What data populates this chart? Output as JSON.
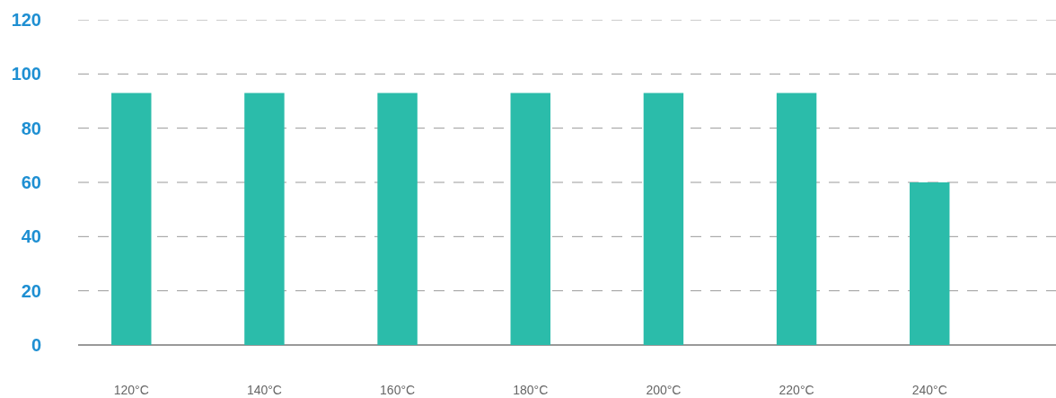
{
  "chart_data": {
    "type": "bar",
    "categories": [
      "120°C",
      "140°C",
      "160°C",
      "180°C",
      "200°C",
      "220°C",
      "240°C"
    ],
    "values": [
      93,
      93,
      93,
      93,
      93,
      93,
      60
    ],
    "color": "#2bbcaa",
    "ylim": [
      0,
      120
    ],
    "yticks": [
      0,
      20,
      40,
      60,
      80,
      100,
      120
    ],
    "grid": "y"
  }
}
